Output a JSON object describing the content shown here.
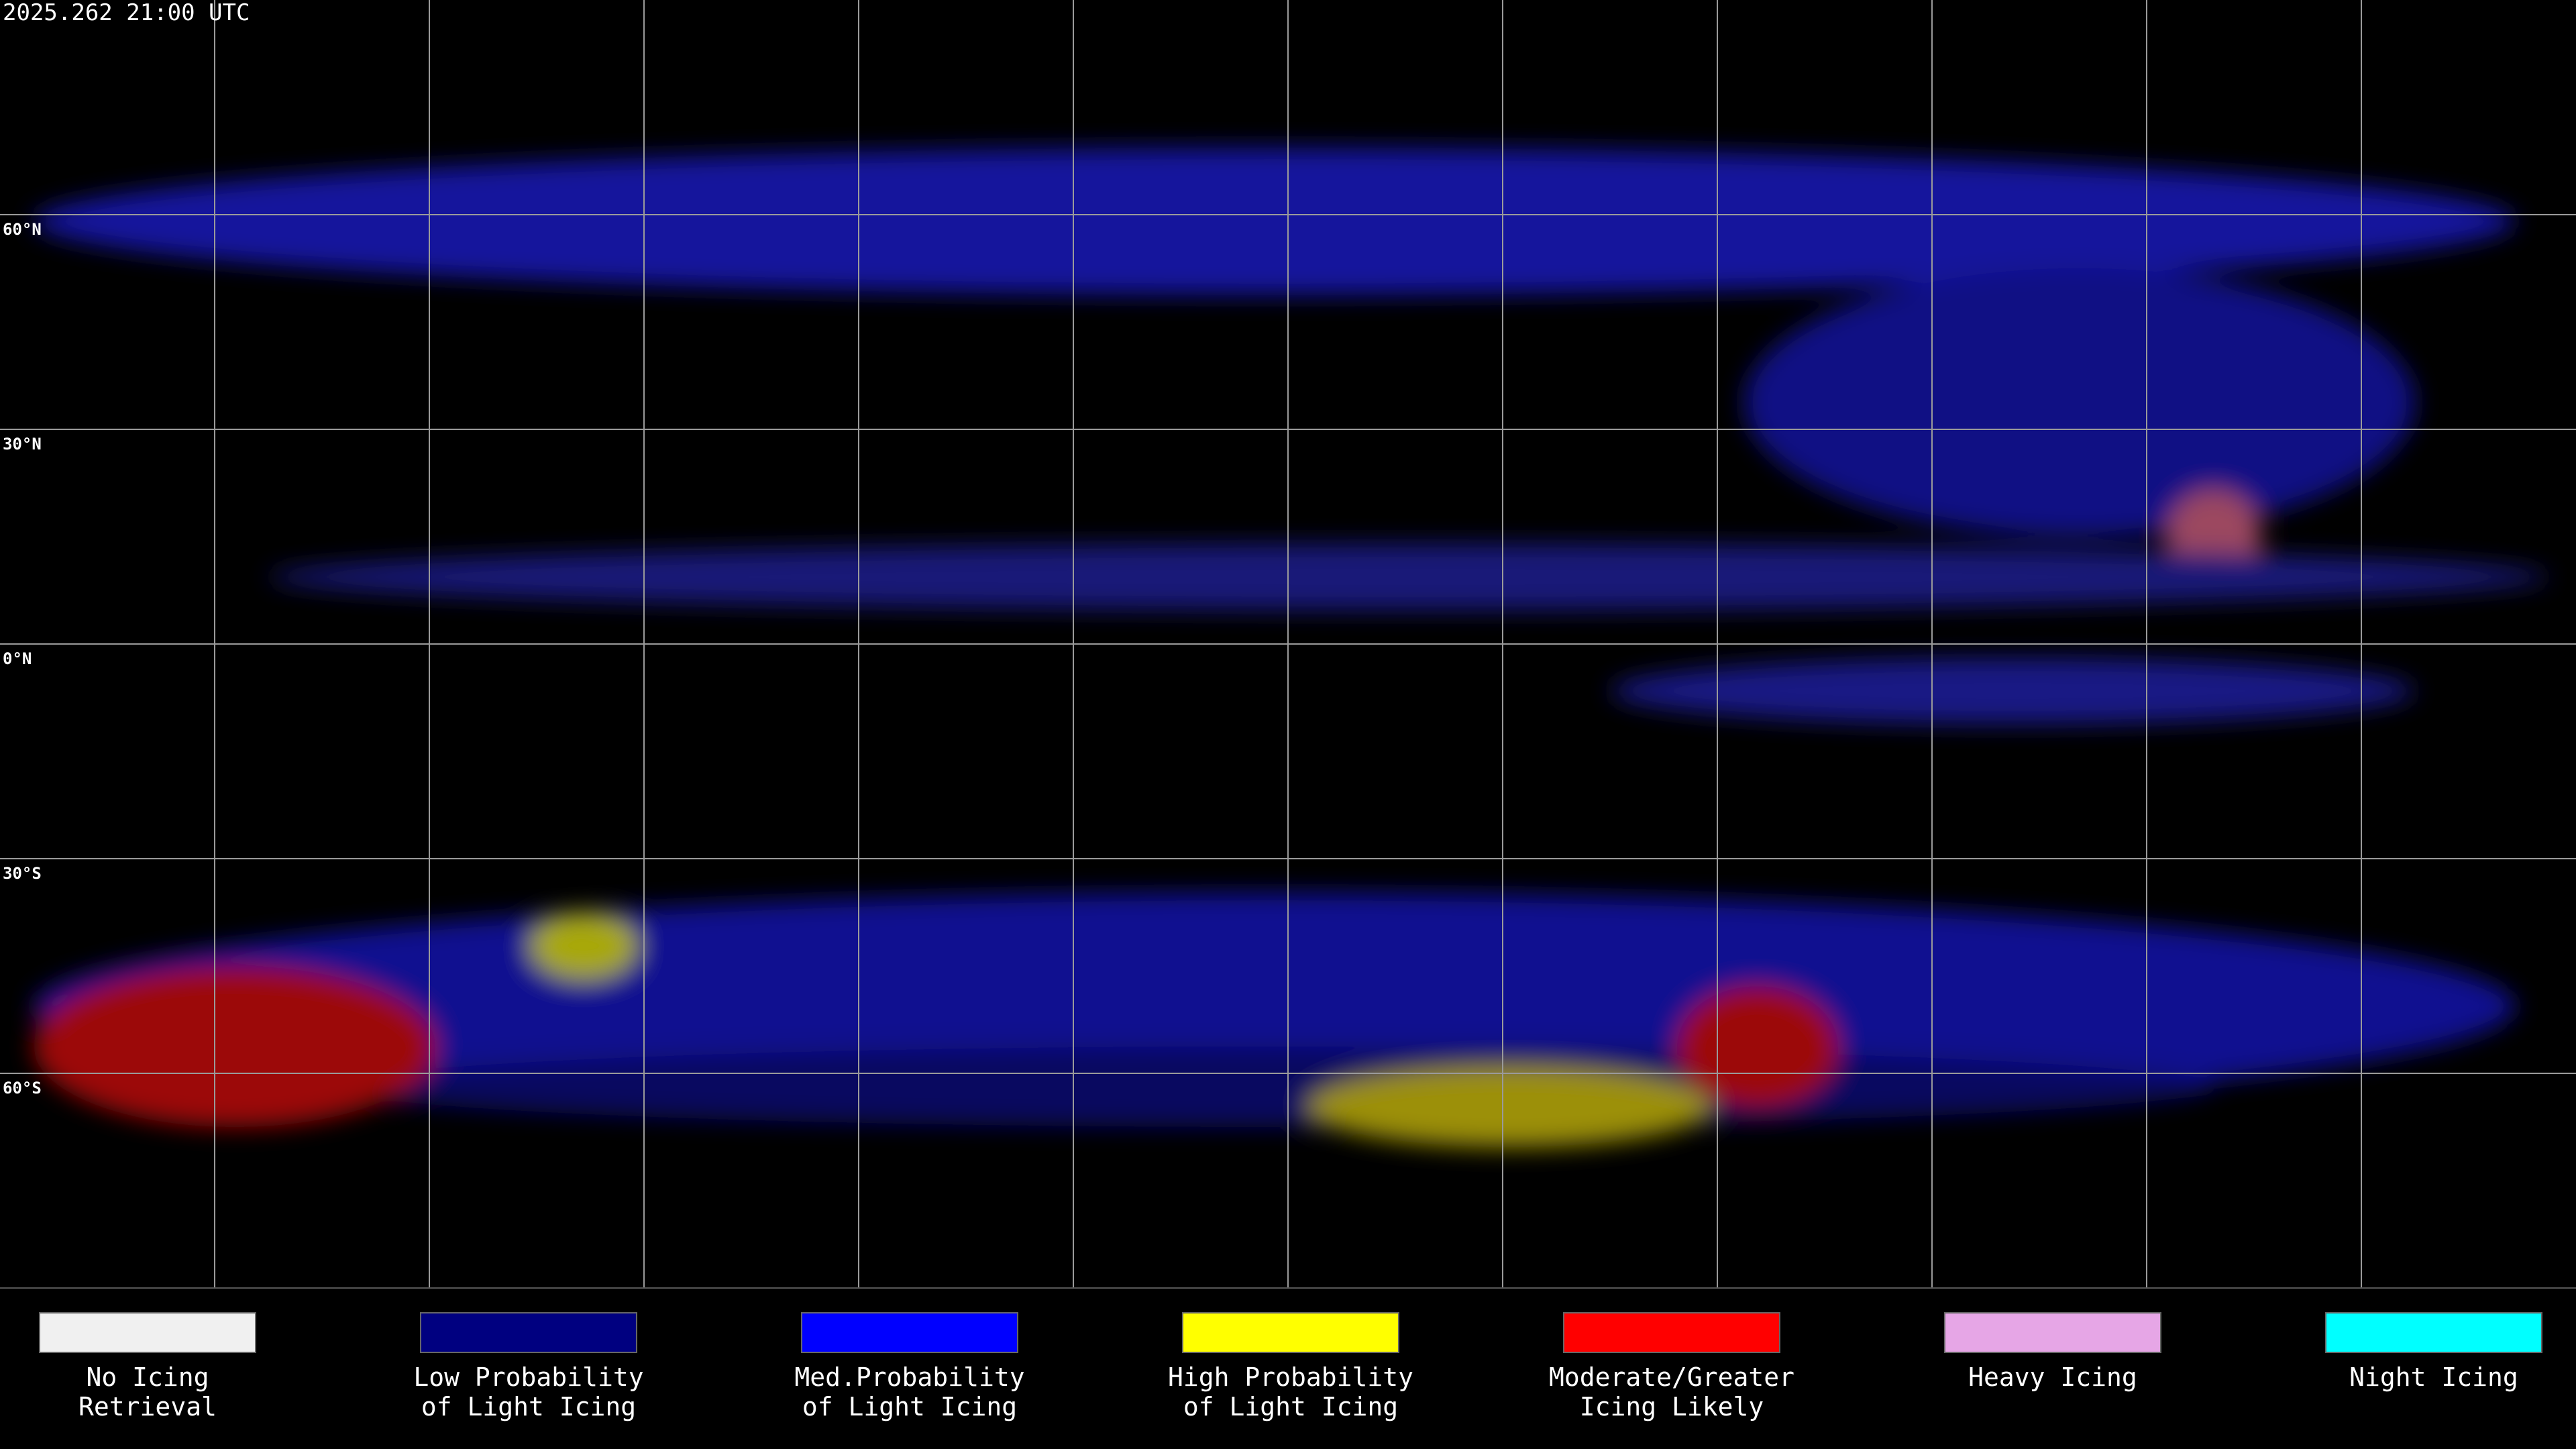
{
  "header": {
    "timestamp": "2025.262 21:00 UTC"
  },
  "latitude_labels": [
    "60°N",
    "30°N",
    "0°N",
    "30°S",
    "60°S"
  ],
  "legend": {
    "items": [
      {
        "color": "#f0f0f0",
        "label_lines": [
          "No Icing",
          "Retrieval"
        ]
      },
      {
        "color": "#000080",
        "label_lines": [
          "Low Probability",
          "of Light Icing"
        ]
      },
      {
        "color": "#0000ff",
        "label_lines": [
          "Med.Probability",
          "of Light Icing"
        ]
      },
      {
        "color": "#ffff00",
        "label_lines": [
          "High Probability",
          "of Light Icing"
        ]
      },
      {
        "color": "#ff0000",
        "label_lines": [
          "Moderate/Greater",
          "Icing Likely"
        ]
      },
      {
        "color": "#e6a6e6",
        "label_lines": [
          "Heavy Icing"
        ]
      },
      {
        "color": "#00ffff",
        "label_lines": [
          "Night Icing"
        ]
      }
    ]
  }
}
